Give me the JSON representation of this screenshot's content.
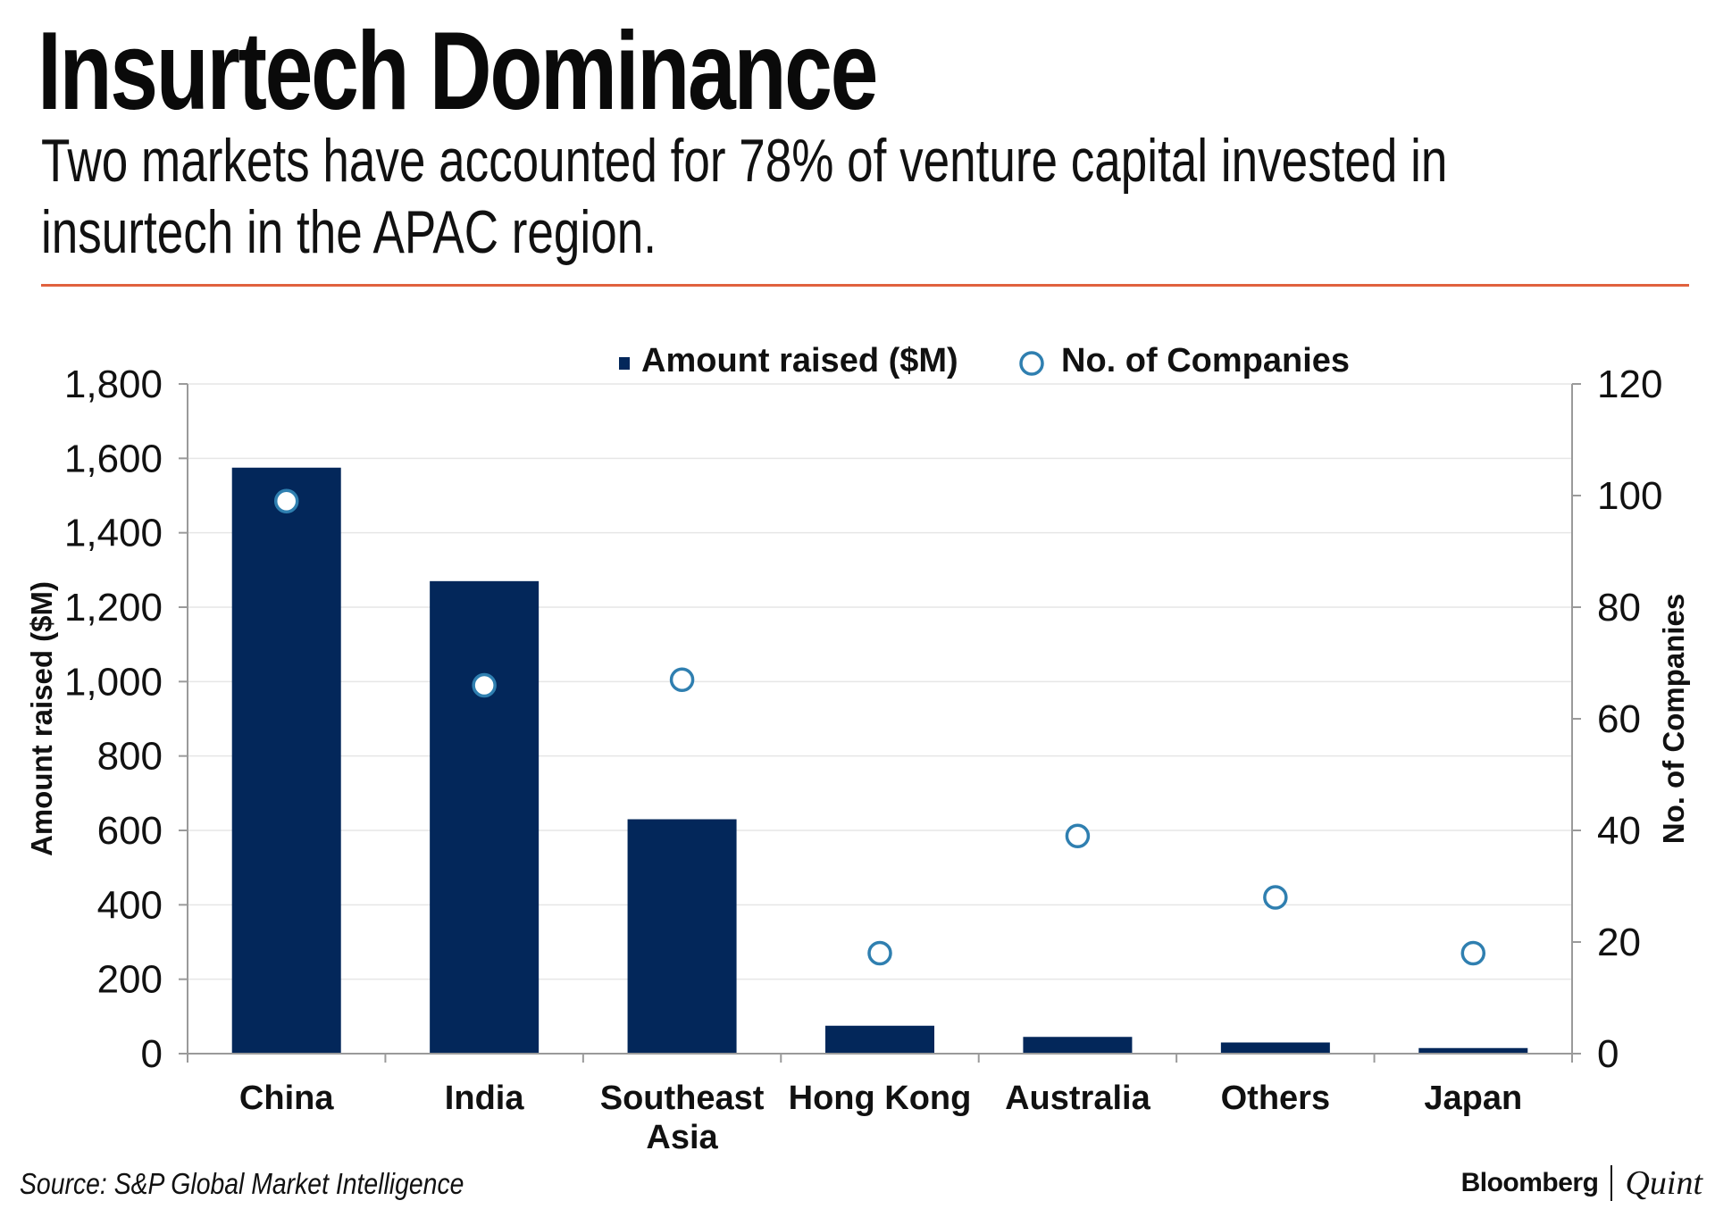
{
  "header": {
    "title": "Insurtech Dominance",
    "subtitle": "Two markets have accounted for 78% of venture capital invested in insurtech in the APAC region."
  },
  "footer": {
    "source": "Source: S&P Global Market Intelligence",
    "brand_primary": "Bloomberg",
    "brand_secondary": "Quint"
  },
  "colors": {
    "bar": "#03275a",
    "marker_stroke": "#2f7fb0",
    "rule": "#e0613e",
    "gridline": "#e6e6e6"
  },
  "chart_data": {
    "type": "bar",
    "title": "Insurtech Dominance",
    "categories": [
      [
        "China"
      ],
      [
        "India"
      ],
      [
        "Southeast",
        "Asia"
      ],
      [
        "Hong Kong"
      ],
      [
        "Australia"
      ],
      [
        "Others"
      ],
      [
        "Japan"
      ]
    ],
    "series": [
      {
        "name": "Amount raised ($M)",
        "kind": "bar",
        "axis": "left",
        "values": [
          1575,
          1270,
          630,
          75,
          45,
          30,
          15
        ]
      },
      {
        "name": "No. of Companies",
        "kind": "marker",
        "axis": "right",
        "values": [
          99,
          66,
          67,
          18,
          39,
          28,
          18
        ]
      }
    ],
    "y_left": {
      "label": "Amount raised ($M)",
      "range": [
        0,
        1800
      ],
      "ticks": [
        "0",
        "200",
        "400",
        "600",
        "800",
        "1,000",
        "1,200",
        "1,400",
        "1,600",
        "1,800"
      ],
      "tick_values": [
        0,
        200,
        400,
        600,
        800,
        1000,
        1200,
        1400,
        1600,
        1800
      ]
    },
    "y_right": {
      "label": "No. of Companies",
      "range": [
        0,
        120
      ],
      "ticks": [
        "0",
        "20",
        "40",
        "60",
        "80",
        "100",
        "120"
      ],
      "tick_values": [
        0,
        20,
        40,
        60,
        80,
        100,
        120
      ]
    },
    "legend": {
      "position": "top-center",
      "entries": [
        "Amount raised ($M)",
        "No. of Companies"
      ]
    },
    "grid": true
  }
}
